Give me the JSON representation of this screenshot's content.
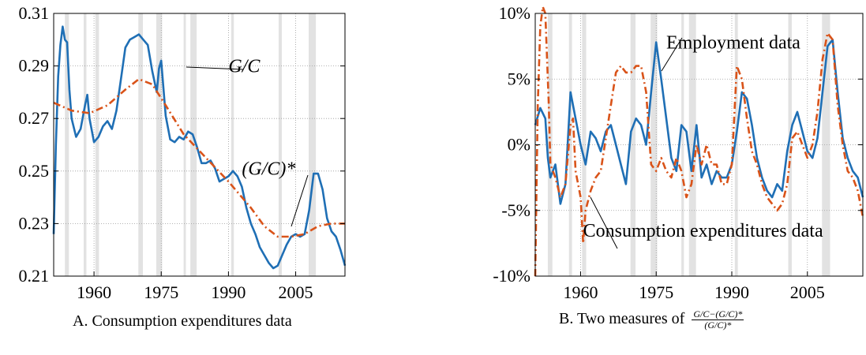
{
  "chart_data": [
    {
      "type": "line",
      "caption": "A. Consumption expenditures data",
      "xlim": [
        1951,
        2016
      ],
      "ylim": [
        0.21,
        0.31
      ],
      "xticks": [
        1960,
        1975,
        1990,
        2005
      ],
      "yticks": [
        0.21,
        0.23,
        0.25,
        0.27,
        0.29,
        0.31
      ],
      "ytick_labels": [
        "0.21",
        "0.23",
        "0.25",
        "0.27",
        "0.29",
        "0.31"
      ],
      "grid": true,
      "recession_bands": [
        [
          1953.5,
          1954.4
        ],
        [
          1957.7,
          1958.3
        ],
        [
          1960.3,
          1961.1
        ],
        [
          1969.9,
          1970.9
        ],
        [
          1973.9,
          1975.2
        ],
        [
          1980.0,
          1980.5
        ],
        [
          1981.5,
          1982.9
        ],
        [
          1990.6,
          1991.2
        ],
        [
          2001.2,
          2001.9
        ],
        [
          2007.9,
          2009.5
        ]
      ],
      "series": [
        {
          "name": "G/C",
          "color": "#1f6fb5",
          "style": "solid",
          "x": [
            1951,
            1951.5,
            1952,
            1952.5,
            1953,
            1953.5,
            1954,
            1954.5,
            1955,
            1956,
            1957,
            1958,
            1958.5,
            1959,
            1960,
            1961,
            1962,
            1963,
            1964,
            1965,
            1966,
            1967,
            1968,
            1969,
            1970,
            1971,
            1972,
            1973,
            1974,
            1974.5,
            1975,
            1976,
            1977,
            1978,
            1979,
            1980,
            1981,
            1982,
            1983,
            1984,
            1985,
            1986,
            1987,
            1988,
            1989,
            1990,
            1991,
            1992,
            1993,
            1994,
            1995,
            1996,
            1997,
            1998,
            1999,
            2000,
            2001,
            2002,
            2003,
            2004,
            2005,
            2006,
            2007,
            2008,
            2009,
            2010,
            2011,
            2012,
            2013,
            2014,
            2015,
            2016
          ],
          "y": [
            0.226,
            0.26,
            0.286,
            0.298,
            0.305,
            0.3,
            0.299,
            0.281,
            0.27,
            0.263,
            0.266,
            0.275,
            0.279,
            0.27,
            0.261,
            0.263,
            0.267,
            0.269,
            0.266,
            0.273,
            0.285,
            0.297,
            0.3,
            0.301,
            0.302,
            0.3,
            0.298,
            0.288,
            0.28,
            0.289,
            0.292,
            0.271,
            0.262,
            0.261,
            0.263,
            0.262,
            0.265,
            0.264,
            0.259,
            0.253,
            0.253,
            0.254,
            0.251,
            0.246,
            0.247,
            0.248,
            0.25,
            0.248,
            0.244,
            0.236,
            0.23,
            0.226,
            0.221,
            0.218,
            0.215,
            0.213,
            0.214,
            0.218,
            0.222,
            0.225,
            0.226,
            0.225,
            0.226,
            0.235,
            0.249,
            0.249,
            0.243,
            0.232,
            0.227,
            0.225,
            0.22,
            0.214
          ]
        },
        {
          "name": "(G/C)*",
          "color": "#d95319",
          "style": "dash-dot",
          "x": [
            1951,
            1955,
            1959,
            1963,
            1967,
            1970,
            1973,
            1976,
            1980,
            1985,
            1990,
            1995,
            1998,
            2001,
            2004,
            2007,
            2010,
            2013,
            2016
          ],
          "y": [
            0.276,
            0.273,
            0.272,
            0.275,
            0.281,
            0.285,
            0.283,
            0.275,
            0.264,
            0.255,
            0.246,
            0.236,
            0.229,
            0.225,
            0.225,
            0.226,
            0.229,
            0.23,
            0.23
          ]
        }
      ],
      "annotations": [
        {
          "text": "G/C",
          "x": 1990,
          "y": 0.29
        },
        {
          "text": "(G/C)*",
          "x": 1993,
          "y": 0.251
        }
      ]
    },
    {
      "type": "line",
      "caption_prefix": "B. Two measures of",
      "caption_frac_num": "G/C−(G/C)*",
      "caption_frac_den": "(G/C)*",
      "xlim": [
        1951,
        2016
      ],
      "ylim": [
        -10,
        10
      ],
      "xticks": [
        1960,
        1975,
        1990,
        2005
      ],
      "yticks": [
        -10,
        -5,
        0,
        5,
        10
      ],
      "ytick_labels": [
        "-10%",
        "-5%",
        "0%",
        "5%",
        "10%"
      ],
      "grid": true,
      "recession_bands": [
        [
          1953.5,
          1954.4
        ],
        [
          1957.7,
          1958.3
        ],
        [
          1960.3,
          1961.1
        ],
        [
          1969.9,
          1970.9
        ],
        [
          1973.9,
          1975.2
        ],
        [
          1980.0,
          1980.5
        ],
        [
          1981.5,
          1982.9
        ],
        [
          1990.6,
          1991.2
        ],
        [
          2001.2,
          2001.9
        ],
        [
          2007.9,
          2009.5
        ]
      ],
      "series": [
        {
          "name": "Employment data",
          "color": "#1f6fb5",
          "style": "solid",
          "x": [
            1951,
            1952,
            1953,
            1953.5,
            1954,
            1955,
            1956,
            1957,
            1958,
            1959,
            1960,
            1961,
            1962,
            1963,
            1964,
            1965,
            1966,
            1967,
            1968,
            1969,
            1970,
            1971,
            1972,
            1973,
            1974,
            1975,
            1976,
            1977,
            1978,
            1979,
            1980,
            1981,
            1982,
            1983,
            1984,
            1985,
            1986,
            1987,
            1988,
            1989,
            1990,
            1991,
            1992,
            1993,
            1994,
            1995,
            1996,
            1997,
            1998,
            1999,
            2000,
            2001,
            2002,
            2003,
            2004,
            2005,
            2006,
            2007,
            2008,
            2009,
            2010,
            2011,
            2012,
            2013,
            2014,
            2015,
            2016
          ],
          "y": [
            1.5,
            2.8,
            2.0,
            -1.0,
            -2.5,
            -1.5,
            -4.5,
            -3.0,
            4.0,
            2.0,
            0.0,
            -1.5,
            1.0,
            0.5,
            -0.5,
            1.0,
            1.5,
            0.0,
            -1.5,
            -3.0,
            1.0,
            2.0,
            1.5,
            0.0,
            4.0,
            7.8,
            5.0,
            2.0,
            -1.0,
            -2.0,
            1.5,
            1.0,
            -2.0,
            1.5,
            -2.5,
            -1.5,
            -3.0,
            -2.0,
            -2.5,
            -2.5,
            -1.5,
            1.0,
            4.0,
            3.5,
            1.5,
            -1.0,
            -2.5,
            -3.5,
            -4.0,
            -3.0,
            -3.5,
            -0.5,
            1.5,
            2.5,
            1.0,
            -0.5,
            -1.0,
            0.5,
            4.0,
            7.5,
            8.0,
            4.0,
            0.5,
            -1.0,
            -2.0,
            -2.5,
            -4.0
          ]
        },
        {
          "name": "Consumption expenditures data",
          "color": "#d95319",
          "style": "dash-dot",
          "x": [
            1951,
            1951.5,
            1952,
            1952.5,
            1953,
            1953.7,
            1954,
            1955,
            1956,
            1957,
            1958,
            1958.5,
            1959,
            1960,
            1960.5,
            1961,
            1962,
            1963,
            1964,
            1965,
            1966,
            1967,
            1968,
            1969,
            1970,
            1971,
            1972,
            1973,
            1974,
            1975,
            1976,
            1977,
            1978,
            1979,
            1980,
            1981,
            1982,
            1983,
            1984,
            1985,
            1986,
            1987,
            1988,
            1989,
            1990,
            1991,
            1992,
            1993,
            1994,
            1995,
            1996,
            1997,
            1998,
            1999,
            2000,
            2001,
            2002,
            2003,
            2004,
            2005,
            2006,
            2007,
            2008,
            2009,
            2010,
            2011,
            2012,
            2013,
            2014,
            2015,
            2016
          ],
          "y": [
            -10,
            3.0,
            9.0,
            10.5,
            10.0,
            3.0,
            -1.5,
            -2.5,
            -4.0,
            -3.0,
            1.5,
            2.0,
            -2.0,
            -4.0,
            -7.5,
            -5.0,
            -3.5,
            -2.5,
            -2.0,
            0.5,
            3.0,
            5.5,
            6.0,
            5.5,
            5.5,
            6.0,
            6.0,
            4.0,
            -1.5,
            -2.0,
            -1.0,
            -2.0,
            -2.5,
            -1.0,
            -2.0,
            -4.0,
            -3.0,
            0.0,
            -1.5,
            0.0,
            -1.5,
            -1.5,
            -3.0,
            -3.0,
            -1.5,
            6.0,
            5.0,
            2.0,
            -0.5,
            -1.5,
            -3.0,
            -4.0,
            -4.5,
            -5.0,
            -4.5,
            -3.0,
            0.5,
            1.0,
            0.0,
            -1.0,
            0.0,
            2.5,
            6.5,
            8.5,
            8.0,
            3.0,
            0.0,
            -2.0,
            -2.5,
            -3.5,
            -5.5
          ]
        }
      ],
      "annotations": [
        {
          "text": "Employment data",
          "x": 1977,
          "y": 7.8
        },
        {
          "text": "Consumption expenditures data",
          "x": 1960.5,
          "y": -7.0
        }
      ]
    }
  ]
}
